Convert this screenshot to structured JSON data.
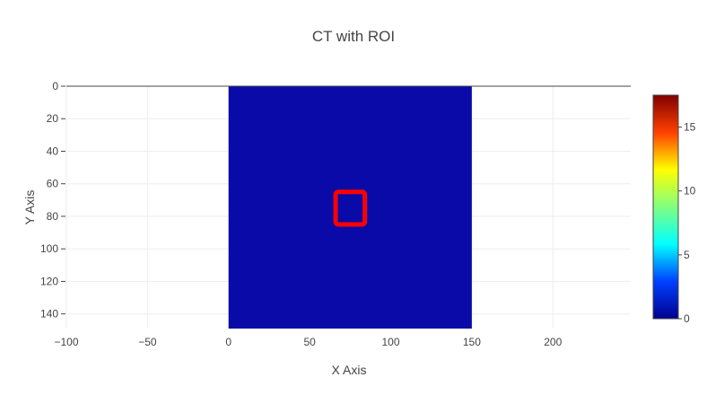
{
  "chart_data": {
    "type": "heatmap",
    "title": "CT with ROI",
    "xlabel": "X Axis",
    "ylabel": "Y Axis",
    "xlim": [
      -100,
      248
    ],
    "ylim": [
      0,
      149
    ],
    "y_reversed": true,
    "grid": true,
    "x_ticks": [
      -100,
      -50,
      0,
      50,
      100,
      150,
      200
    ],
    "x_tick_labels": [
      "−100",
      "−50",
      "0",
      "50",
      "100",
      "150",
      "200"
    ],
    "y_ticks": [
      0,
      20,
      40,
      60,
      80,
      100,
      120,
      140
    ],
    "y_tick_labels": [
      "0",
      "20",
      "40",
      "60",
      "80",
      "100",
      "120",
      "140"
    ],
    "image_extent": {
      "x": [
        0,
        150
      ],
      "y": [
        0,
        149
      ]
    },
    "image_value": 1,
    "image_color": "#0a0aa8",
    "roi": {
      "shape": "rectangle",
      "x": [
        66,
        84
      ],
      "y": [
        65,
        85
      ],
      "color": "#ff0000"
    },
    "colorbar": {
      "min": 0,
      "max": 17.5,
      "ticks": [
        0,
        5,
        10,
        15
      ],
      "tick_labels": [
        "0",
        "5",
        "10",
        "15"
      ],
      "colorscale": [
        "#00008f",
        "#0040ff",
        "#00ffff",
        "#80ff80",
        "#ffff00",
        "#ff4000",
        "#800000"
      ]
    }
  }
}
